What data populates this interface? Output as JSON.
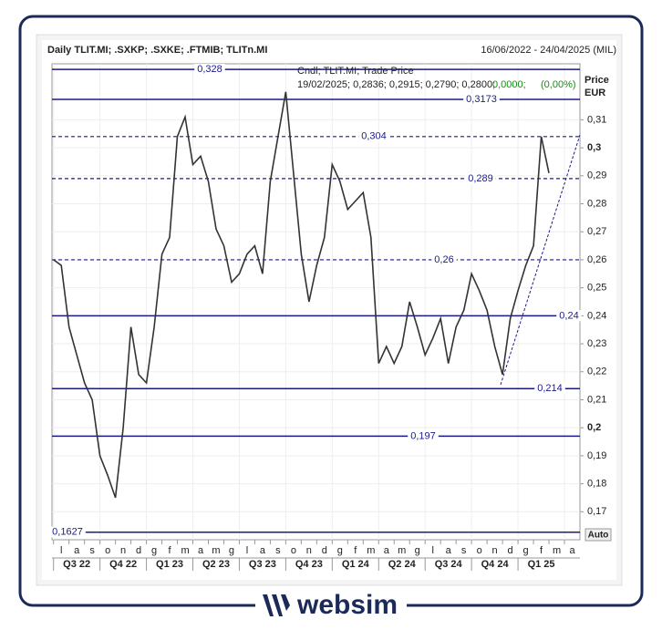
{
  "chart_data": {
    "type": "line",
    "title": "Daily TLIT.MI; .SXKP; .SXKE; .FTMIB; TLITn.MI",
    "date_range": "16/06/2022 - 24/04/2025 (MIL)",
    "legend_lines": [
      "Cndl; TLIT.MI; Trade Price",
      "19/02/2025; 0,2836; 0,2915; 0,2790; 0,2800;"
    ],
    "legend_change": [
      "0,0000;",
      "(0,00%)"
    ],
    "axis_title": [
      "Price",
      "EUR"
    ],
    "auto_button": "Auto",
    "brand": "websim",
    "categories": [
      "l",
      "a",
      "s",
      "o",
      "n",
      "d",
      "g",
      "f",
      "m",
      "a",
      "m",
      "g",
      "l",
      "a",
      "s",
      "o",
      "n",
      "d",
      "g",
      "f",
      "m",
      "a",
      "m",
      "g",
      "l",
      "a",
      "s",
      "o",
      "n",
      "d",
      "g",
      "f",
      "m",
      "a"
    ],
    "quarters": [
      "Q3 22",
      "Q4 22",
      "Q1 23",
      "Q2 23",
      "Q3 23",
      "Q4 23",
      "Q1 24",
      "Q2 24",
      "Q3 24",
      "Q4 24",
      "Q1 25"
    ],
    "xlim": [
      -0.1,
      34
    ],
    "ylim": [
      0.16,
      0.33
    ],
    "yticks": [
      {
        "value": 0.17,
        "label": "0,17"
      },
      {
        "value": 0.18,
        "label": "0,18"
      },
      {
        "value": 0.19,
        "label": "0,19"
      },
      {
        "value": 0.2,
        "label": "0,2"
      },
      {
        "value": 0.21,
        "label": "0,21"
      },
      {
        "value": 0.22,
        "label": "0,22"
      },
      {
        "value": 0.23,
        "label": "0,23"
      },
      {
        "value": 0.24,
        "label": "0,24"
      },
      {
        "value": 0.25,
        "label": "0,25"
      },
      {
        "value": 0.26,
        "label": "0,26"
      },
      {
        "value": 0.27,
        "label": "0,27"
      },
      {
        "value": 0.28,
        "label": "0,28"
      },
      {
        "value": 0.29,
        "label": "0,29"
      },
      {
        "value": 0.3,
        "label": "0,3"
      },
      {
        "value": 0.31,
        "label": "0,31"
      }
    ],
    "grid": true,
    "levels": [
      {
        "value": 0.328,
        "label": "0,328",
        "style": "solid"
      },
      {
        "value": 0.3173,
        "label": "0,3173",
        "style": "solid"
      },
      {
        "value": 0.304,
        "label": "0,304",
        "style": "dashed"
      },
      {
        "value": 0.289,
        "label": "0,289",
        "style": "dashed"
      },
      {
        "value": 0.26,
        "label": "0,26",
        "style": "dashed"
      },
      {
        "value": 0.24,
        "label": "0,24",
        "style": "solid"
      },
      {
        "value": 0.214,
        "label": "0,214",
        "style": "solid"
      },
      {
        "value": 0.197,
        "label": "0,197",
        "style": "solid"
      },
      {
        "value": 0.1627,
        "label": "0,1627",
        "style": "solid"
      }
    ],
    "level_color": "#1a1a8c",
    "series": [
      {
        "name": "TLIT.MI",
        "color": "#333333",
        "x": [
          0,
          0.5,
          1,
          1.5,
          2,
          2.5,
          3,
          3.5,
          4,
          4.5,
          5,
          5.5,
          6,
          6.5,
          7,
          7.5,
          8,
          8.5,
          9,
          9.5,
          10,
          10.5,
          11,
          11.5,
          12,
          12.5,
          13,
          13.5,
          14,
          14.5,
          15,
          15.5,
          16,
          16.5,
          17,
          17.5,
          18,
          18.5,
          19,
          19.5,
          20,
          20.5,
          21,
          21.5,
          22,
          22.5,
          23,
          23.5,
          24,
          24.5,
          25,
          25.5,
          26,
          26.5,
          27,
          27.5,
          28,
          28.5,
          29,
          29.5,
          30,
          30.5,
          31,
          31.5,
          32
        ],
        "values": [
          0.26,
          0.258,
          0.236,
          0.226,
          0.216,
          0.21,
          0.19,
          0.183,
          0.175,
          0.2,
          0.236,
          0.219,
          0.216,
          0.236,
          0.262,
          0.268,
          0.304,
          0.311,
          0.294,
          0.297,
          0.288,
          0.271,
          0.265,
          0.252,
          0.255,
          0.262,
          0.265,
          0.255,
          0.288,
          0.304,
          0.32,
          0.291,
          0.262,
          0.245,
          0.258,
          0.268,
          0.294,
          0.288,
          0.278,
          0.281,
          0.284,
          0.268,
          0.223,
          0.229,
          0.223,
          0.229,
          0.245,
          0.236,
          0.226,
          0.232,
          0.239,
          0.223,
          0.236,
          0.242,
          0.255,
          0.249,
          0.242,
          0.229,
          0.219,
          0.239,
          0.249,
          0.258,
          0.265,
          0.304,
          0.291
        ]
      }
    ]
  }
}
